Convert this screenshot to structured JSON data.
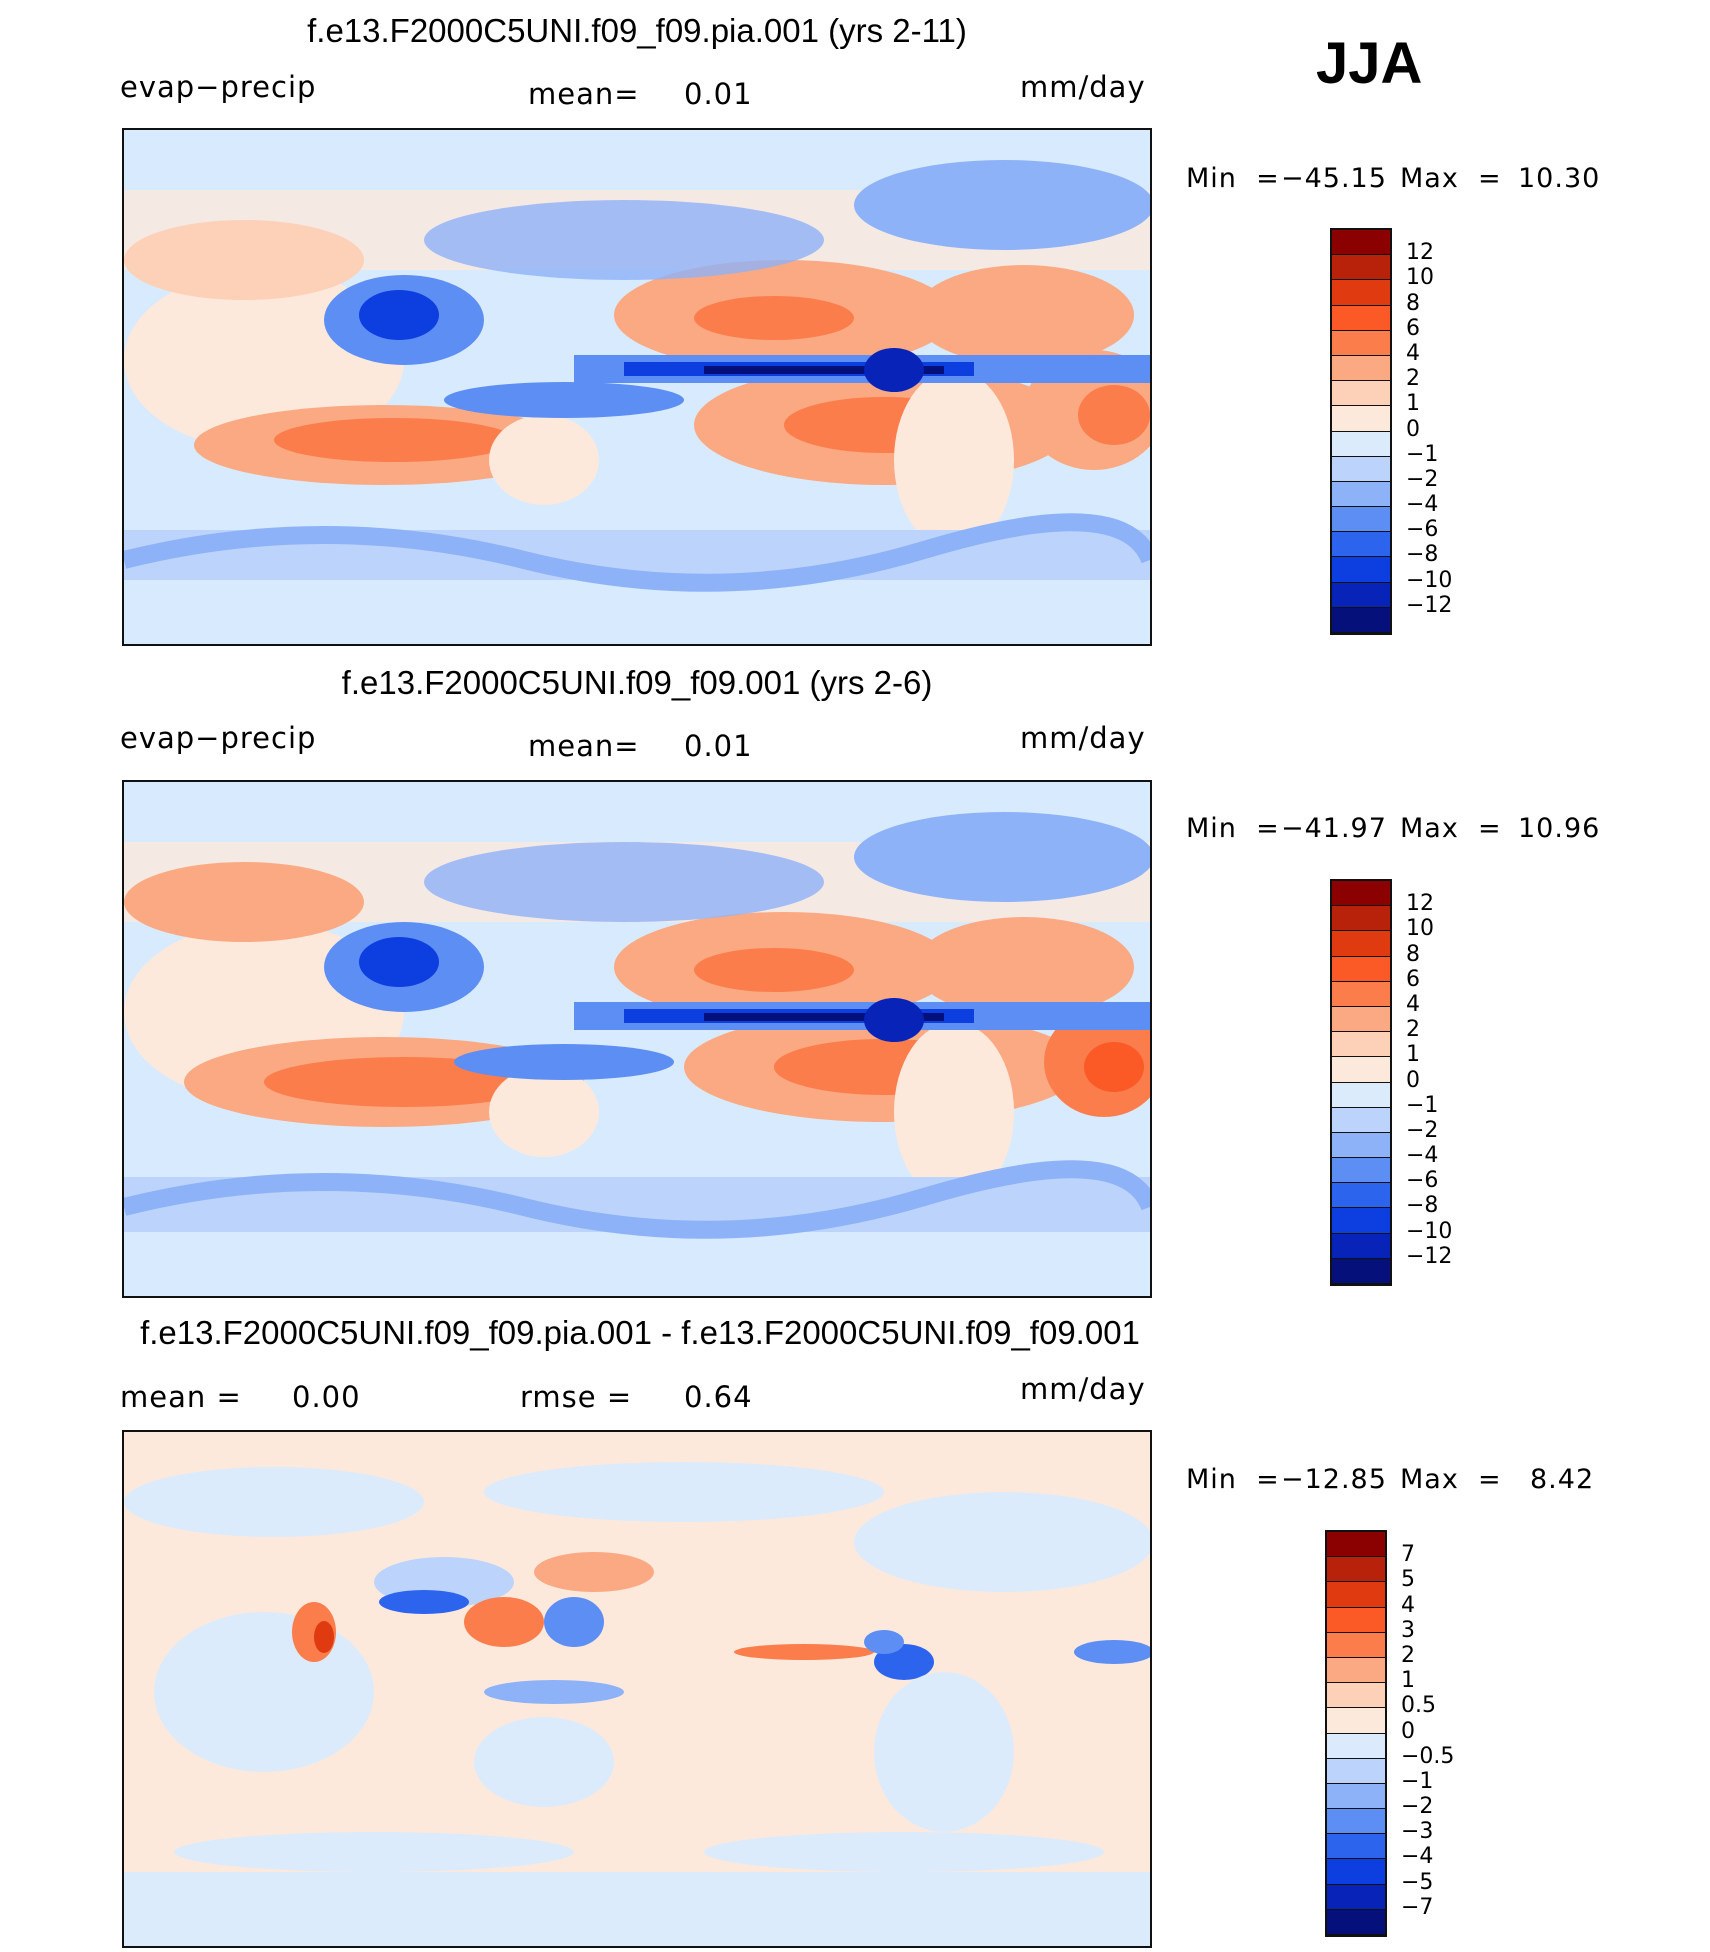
{
  "season": "JJA",
  "panels": [
    {
      "title": "f.e13.F2000C5UNI.f09_f09.pia.001 (yrs 2-11)",
      "left_label": "evap−precip",
      "center_label": "mean=",
      "center_value": "0.01",
      "units": "mm/day",
      "min_label": "Min  =",
      "min_value": "−45.15",
      "max_label": "Max  =",
      "max_value": "10.30",
      "colorbar": {
        "labels": [
          "12",
          "10",
          "8",
          "6",
          "4",
          "2",
          "1",
          "0",
          "−1",
          "−2",
          "−4",
          "−6",
          "−8",
          "−10",
          "−12"
        ],
        "colors": [
          "#8b0000",
          "#b8220a",
          "#e03b10",
          "#fb5a26",
          "#fb7d4c",
          "#fba982",
          "#fdd0b8",
          "#fde9dc",
          "#dcebfb",
          "#bcd4fb",
          "#8eb2f8",
          "#5c8ef3",
          "#2d64ee",
          "#0d3ee0",
          "#0723b8",
          "#05107a"
        ]
      }
    },
    {
      "title": "f.e13.F2000C5UNI.f09_f09.001 (yrs 2-6)",
      "left_label": "evap−precip",
      "center_label": "mean=",
      "center_value": "0.01",
      "units": "mm/day",
      "min_label": "Min  =",
      "min_value": "−41.97",
      "max_label": "Max  =",
      "max_value": "10.96",
      "colorbar": {
        "labels": [
          "12",
          "10",
          "8",
          "6",
          "4",
          "2",
          "1",
          "0",
          "−1",
          "−2",
          "−4",
          "−6",
          "−8",
          "−10",
          "−12"
        ],
        "colors": [
          "#8b0000",
          "#b8220a",
          "#e03b10",
          "#fb5a26",
          "#fb7d4c",
          "#fba982",
          "#fdd0b8",
          "#fde9dc",
          "#dcebfb",
          "#bcd4fb",
          "#8eb2f8",
          "#5c8ef3",
          "#2d64ee",
          "#0d3ee0",
          "#0723b8",
          "#05107a"
        ]
      }
    },
    {
      "title": "f.e13.F2000C5UNI.f09_f09.pia.001 - f.e13.F2000C5UNI.f09_f09.001",
      "left_label": "mean =",
      "left_value": "0.00",
      "center_label": "rmse =",
      "center_value": "0.64",
      "units": "mm/day",
      "min_label": "Min  =",
      "min_value": "−12.85",
      "max_label": "Max  =",
      "max_value": "8.42",
      "colorbar": {
        "labels": [
          "7",
          "5",
          "4",
          "3",
          "2",
          "1",
          "0.5",
          "0",
          "−0.5",
          "−1",
          "−2",
          "−3",
          "−4",
          "−5",
          "−7"
        ],
        "colors": [
          "#8b0000",
          "#b8220a",
          "#e03b10",
          "#fb5a26",
          "#fb7d4c",
          "#fba982",
          "#fdd0b8",
          "#fde9dc",
          "#dcebfb",
          "#bcd4fb",
          "#8eb2f8",
          "#5c8ef3",
          "#2d64ee",
          "#0d3ee0",
          "#0723b8",
          "#05107a"
        ]
      }
    }
  ]
}
